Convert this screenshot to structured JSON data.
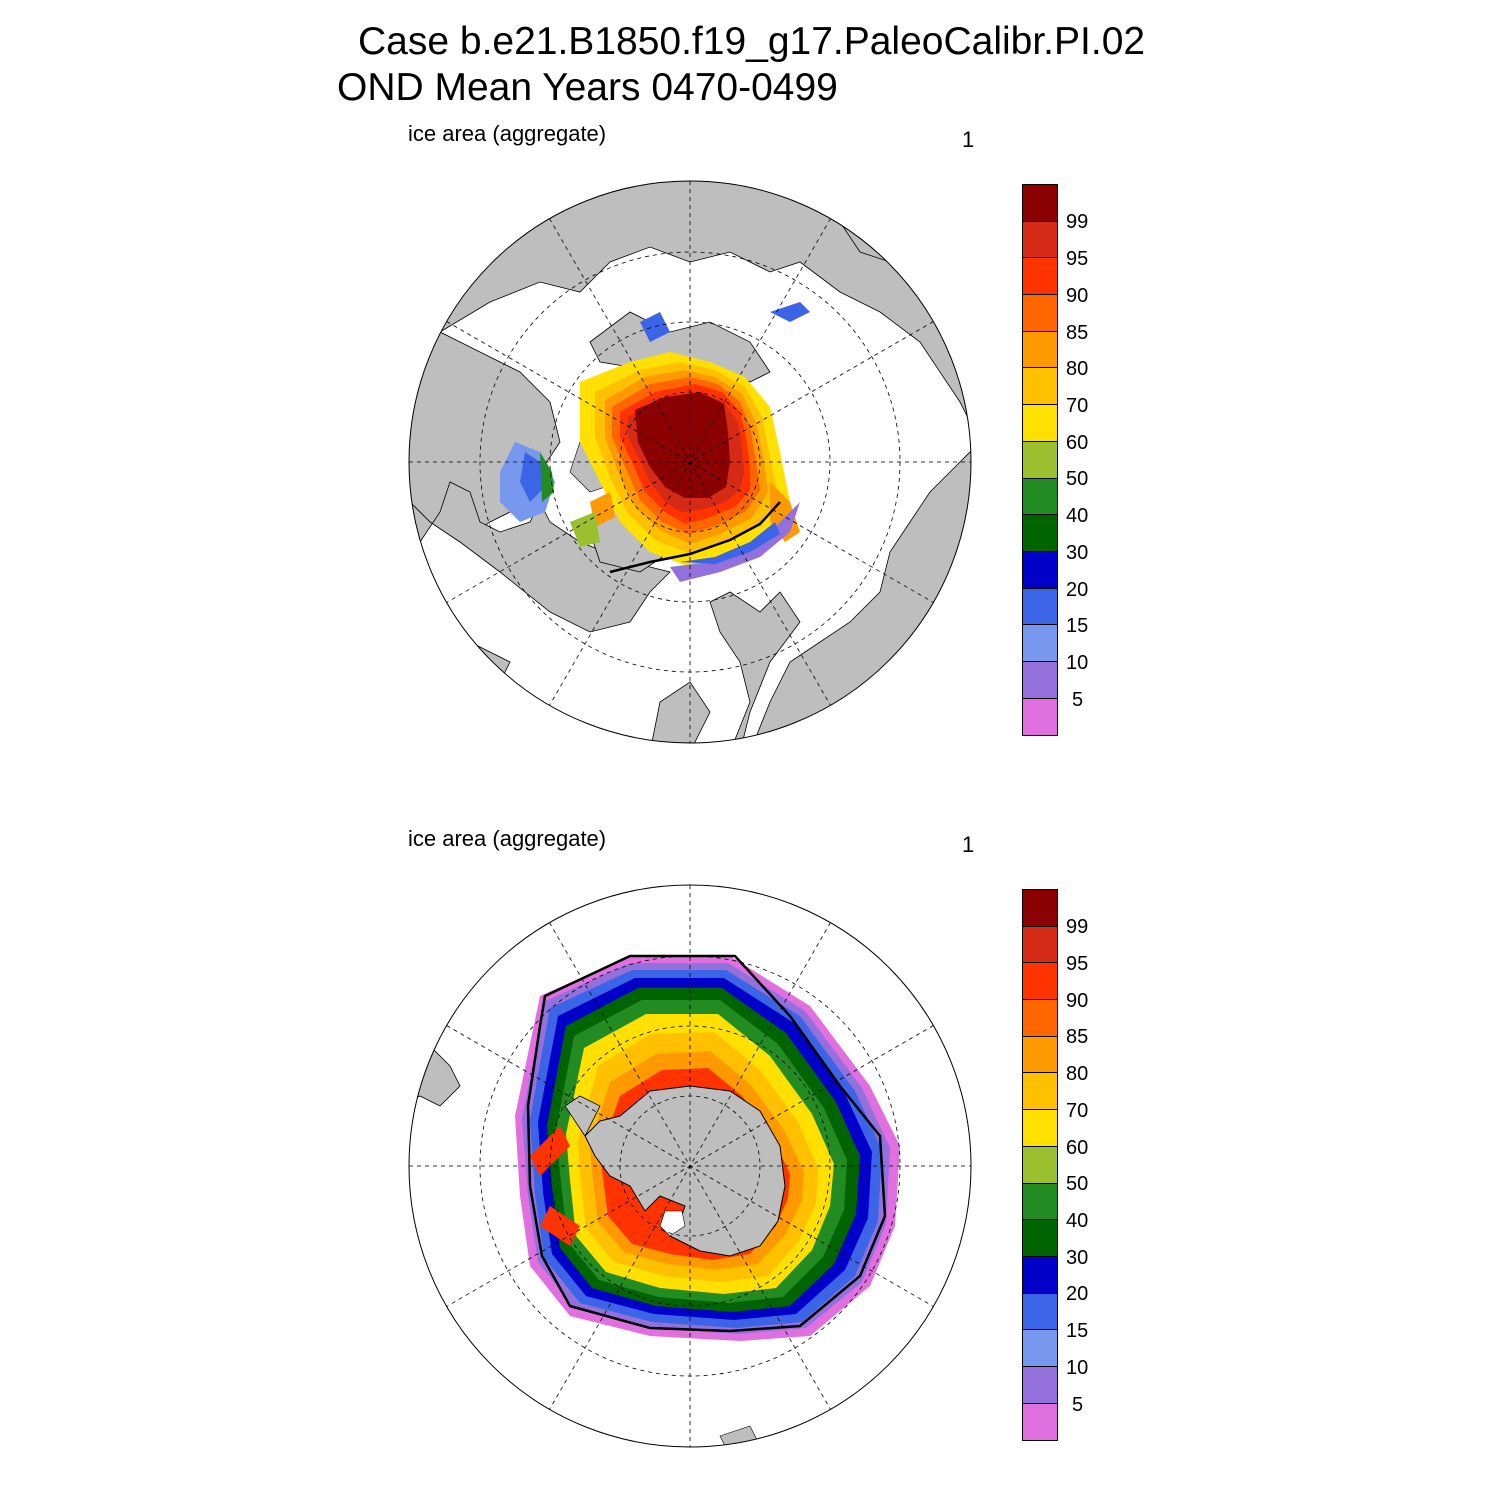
{
  "header": {
    "title_line1": "Case b.e21.B1850.f19_g17.PaleoCalibr.PI.02",
    "title_line2": "OND Mean   Years 0470-0499"
  },
  "panels": [
    {
      "id": "nh",
      "left_label": "ice area  (aggregate)",
      "right_label": "1",
      "hemisphere": "north"
    },
    {
      "id": "sh",
      "left_label": "ice area  (aggregate)",
      "right_label": "1",
      "hemisphere": "south"
    }
  ],
  "colorbar": {
    "labels": [
      "99",
      "95",
      "90",
      "85",
      "80",
      "70",
      "60",
      "50",
      "40",
      "30",
      "20",
      "15",
      "10",
      "5"
    ],
    "colors": [
      "#8b0000",
      "#d42a16",
      "#ff3300",
      "#ff6600",
      "#ff9900",
      "#ffc000",
      "#ffe000",
      "#9ac030",
      "#228b22",
      "#006400",
      "#0000c8",
      "#3c64e6",
      "#7898f0",
      "#9370db",
      "#e070e0"
    ]
  },
  "map_colors": {
    "land": "#bebebe",
    "ocean": "#ffffff",
    "grid": "#000000"
  }
}
